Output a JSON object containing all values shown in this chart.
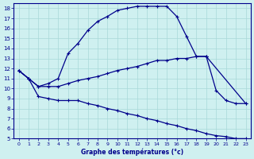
{
  "xlabel": "Graphe des températures (°c)",
  "bg_color": "#cff0f0",
  "line_color": "#00008b",
  "grid_color": "#a8d8d8",
  "ylim": [
    5,
    18.5
  ],
  "xlim": [
    -0.5,
    23.5
  ],
  "yticks": [
    5,
    6,
    7,
    8,
    9,
    10,
    11,
    12,
    13,
    14,
    15,
    16,
    17,
    18
  ],
  "xticks": [
    0,
    1,
    2,
    3,
    4,
    5,
    6,
    7,
    8,
    9,
    10,
    11,
    12,
    13,
    14,
    15,
    16,
    17,
    18,
    19,
    20,
    21,
    22,
    23
  ],
  "line_top_x": [
    0,
    1,
    2,
    3,
    4,
    5,
    6,
    7,
    8,
    9,
    10,
    11,
    12,
    13,
    14,
    15,
    16,
    17,
    18,
    19
  ],
  "line_top_y": [
    11.8,
    11.0,
    10.2,
    10.5,
    11.0,
    13.5,
    14.5,
    15.8,
    16.7,
    17.2,
    17.8,
    18.0,
    18.2,
    18.2,
    18.2,
    18.2,
    17.2,
    15.2,
    13.2,
    13.2
  ],
  "line_mid_x": [
    0,
    1,
    2,
    3,
    4,
    5,
    6,
    7,
    8,
    9,
    10,
    11,
    12,
    13,
    14,
    15,
    16,
    17,
    18,
    19,
    23
  ],
  "line_mid_y": [
    11.8,
    11.0,
    10.2,
    10.2,
    10.2,
    10.5,
    10.8,
    11.0,
    11.2,
    11.5,
    11.8,
    12.0,
    12.2,
    12.5,
    12.8,
    12.8,
    13.0,
    13.0,
    13.2,
    13.2,
    8.5
  ],
  "line_bot_x": [
    0,
    1,
    2,
    3,
    4,
    5,
    6,
    7,
    8,
    9,
    10,
    11,
    12,
    13,
    14,
    15,
    16,
    17,
    18,
    19,
    20,
    21,
    22,
    23
  ],
  "line_bot_y": [
    11.8,
    11.0,
    9.2,
    9.0,
    8.8,
    8.8,
    8.8,
    8.5,
    8.3,
    8.0,
    7.8,
    7.5,
    7.3,
    7.0,
    6.8,
    6.5,
    6.3,
    6.0,
    5.8,
    5.5,
    5.3,
    5.2,
    5.0,
    5.0
  ],
  "line_end_x": [
    19,
    20,
    21,
    22,
    23
  ],
  "line_end_y": [
    13.2,
    9.8,
    8.8,
    8.5,
    8.5
  ]
}
